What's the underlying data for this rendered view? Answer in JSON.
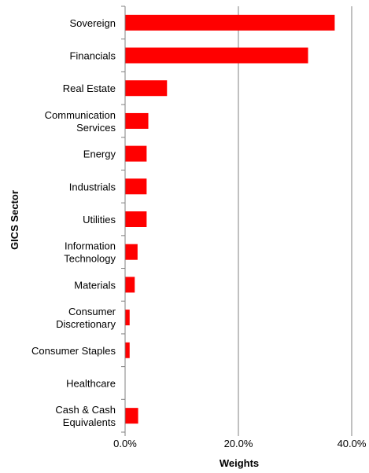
{
  "chart_data": {
    "type": "bar",
    "orientation": "horizontal",
    "xlabel": "Weights",
    "ylabel": "GICS Sector",
    "xlim": [
      0,
      0.4
    ],
    "x_ticks": [
      0,
      0.2,
      0.4
    ],
    "x_tick_labels": [
      "0.0%",
      "20.0%",
      "40.0%"
    ],
    "grid": "vertical",
    "bar_color": "#ff0000",
    "categories": [
      {
        "lines": [
          "Sovereign"
        ],
        "value": 0.37
      },
      {
        "lines": [
          "Financials"
        ],
        "value": 0.323
      },
      {
        "lines": [
          "Real Estate"
        ],
        "value": 0.074
      },
      {
        "lines": [
          "Communication",
          "Services"
        ],
        "value": 0.041
      },
      {
        "lines": [
          "Energy"
        ],
        "value": 0.038
      },
      {
        "lines": [
          "Industrials"
        ],
        "value": 0.038
      },
      {
        "lines": [
          "Utilities"
        ],
        "value": 0.038
      },
      {
        "lines": [
          "Information",
          "Technology"
        ],
        "value": 0.022
      },
      {
        "lines": [
          "Materials"
        ],
        "value": 0.017
      },
      {
        "lines": [
          "Consumer",
          "Discretionary"
        ],
        "value": 0.008
      },
      {
        "lines": [
          "Consumer Staples"
        ],
        "value": 0.008
      },
      {
        "lines": [
          "Healthcare"
        ],
        "value": 0
      },
      {
        "lines": [
          "Cash & Cash",
          "Equivalents"
        ],
        "value": 0.023
      }
    ]
  }
}
